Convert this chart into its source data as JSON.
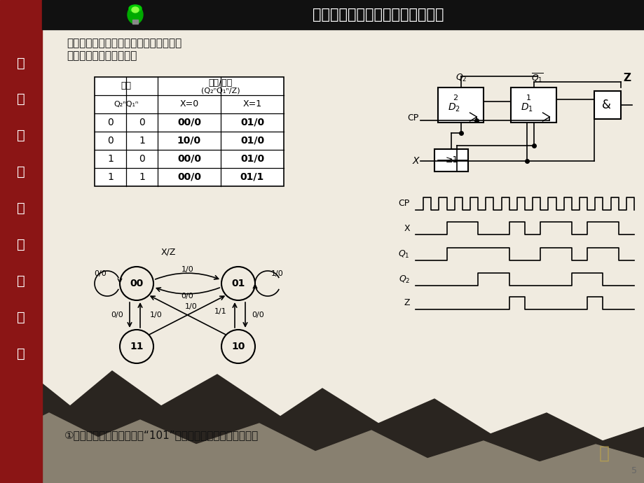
{
  "title": "第十四章时序逻辑电路分析与设计",
  "bg_color": "#f0ebe0",
  "header_bg": "#1a1a1a",
  "example_text1": "例：试分析如图所示的同步时序逻辑电路",
  "example_text2": "解：按上述分析步骤分析",
  "footer_text": "①功能说明：每当输入出现“101”序列，输出产生一脉冲信号。",
  "side_text": [
    "电",
    "路",
    "与",
    "电",
    "子",
    "技",
    "术",
    "基",
    "础"
  ],
  "table_rows": [
    [
      "0",
      "0",
      "00/0",
      "01/0"
    ],
    [
      "0",
      "1",
      "10/0",
      "01/0"
    ],
    [
      "1",
      "0",
      "00/0",
      "01/0"
    ],
    [
      "1",
      "1",
      "00/0",
      "01/1"
    ]
  ]
}
